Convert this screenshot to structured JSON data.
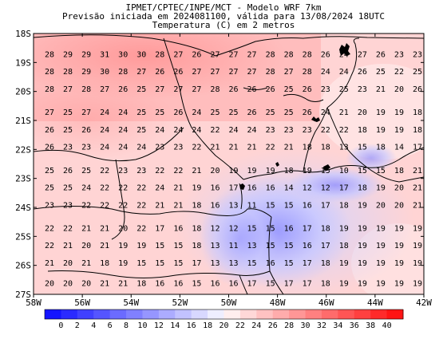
{
  "header": {
    "line1": "IPMET/CPTEC/INPE/MCT - Modelo WRF 7km",
    "line2": "Previsão iniciada em 2024081100, válida para 13/08/2024 18UTC",
    "line3": "Temperatura (C) em 2 metros"
  },
  "map": {
    "lon_ticks": [
      "58W",
      "56W",
      "54W",
      "52W",
      "50W",
      "48W",
      "46W",
      "44W",
      "42W"
    ],
    "lat_ticks": [
      "18S",
      "19S",
      "20S",
      "21S",
      "22S",
      "23S",
      "24S",
      "25S",
      "26S",
      "27S"
    ],
    "lon_range": [
      -58,
      -42
    ],
    "lat_range": [
      -27,
      -18
    ],
    "grid_rows": [
      {
        "lat": -18.7,
        "values": [
          "28",
          "29",
          "29",
          "31",
          "30",
          "30",
          "28",
          "27",
          "26",
          "27",
          "27",
          "27",
          "28",
          "28",
          "28",
          "26",
          "24",
          "27",
          "26",
          "23",
          "23"
        ]
      },
      {
        "lat": -19.3,
        "values": [
          "28",
          "28",
          "29",
          "30",
          "28",
          "27",
          "26",
          "26",
          "27",
          "27",
          "27",
          "27",
          "28",
          "27",
          "28",
          "24",
          "24",
          "26",
          "25",
          "22",
          "25"
        ]
      },
      {
        "lat": -19.9,
        "values": [
          "28",
          "27",
          "28",
          "27",
          "26",
          "25",
          "27",
          "27",
          "27",
          "28",
          "26",
          "26",
          "26",
          "25",
          "26",
          "23",
          "25",
          "23",
          "21",
          "20",
          "26"
        ]
      },
      {
        "lat": -20.7,
        "values": [
          "27",
          "25",
          "27",
          "24",
          "24",
          "25",
          "25",
          "26",
          "24",
          "25",
          "25",
          "26",
          "25",
          "25",
          "26",
          "24",
          "21",
          "20",
          "19",
          "19",
          "18"
        ]
      },
      {
        "lat": -21.3,
        "values": [
          "26",
          "25",
          "26",
          "24",
          "24",
          "25",
          "24",
          "24",
          "24",
          "22",
          "24",
          "24",
          "23",
          "23",
          "23",
          "22",
          "22",
          "18",
          "19",
          "19",
          "18"
        ]
      },
      {
        "lat": -21.9,
        "values": [
          "26",
          "23",
          "23",
          "24",
          "24",
          "24",
          "23",
          "23",
          "22",
          "21",
          "21",
          "21",
          "22",
          "21",
          "18",
          "18",
          "13",
          "15",
          "18",
          "14",
          "17"
        ]
      },
      {
        "lat": -22.7,
        "values": [
          "25",
          "26",
          "25",
          "22",
          "23",
          "23",
          "22",
          "22",
          "21",
          "20",
          "19",
          "19",
          "19",
          "18",
          "19",
          "15",
          "10",
          "15",
          "15",
          "18",
          "21"
        ]
      },
      {
        "lat": -23.3,
        "values": [
          "25",
          "25",
          "24",
          "22",
          "22",
          "22",
          "24",
          "21",
          "19",
          "16",
          "17",
          "16",
          "16",
          "14",
          "12",
          "12",
          "17",
          "18",
          "19",
          "20",
          "21"
        ]
      },
      {
        "lat": -23.9,
        "values": [
          "23",
          "23",
          "22",
          "22",
          "22",
          "22",
          "21",
          "21",
          "18",
          "16",
          "13",
          "11",
          "15",
          "15",
          "16",
          "17",
          "18",
          "19",
          "20",
          "20",
          "21"
        ]
      },
      {
        "lat": -24.7,
        "values": [
          "22",
          "22",
          "21",
          "21",
          "20",
          "22",
          "17",
          "16",
          "18",
          "12",
          "12",
          "15",
          "15",
          "16",
          "17",
          "18",
          "19",
          "19",
          "19",
          "19",
          "19"
        ]
      },
      {
        "lat": -25.3,
        "values": [
          "22",
          "21",
          "20",
          "21",
          "19",
          "19",
          "15",
          "15",
          "18",
          "13",
          "11",
          "13",
          "15",
          "15",
          "16",
          "17",
          "18",
          "19",
          "19",
          "19",
          "19"
        ]
      },
      {
        "lat": -25.9,
        "values": [
          "21",
          "20",
          "21",
          "18",
          "19",
          "15",
          "15",
          "15",
          "17",
          "13",
          "13",
          "15",
          "16",
          "15",
          "17",
          "18",
          "19",
          "19",
          "19",
          "19",
          "19"
        ]
      },
      {
        "lat": -26.6,
        "values": [
          "20",
          "20",
          "20",
          "21",
          "21",
          "18",
          "16",
          "16",
          "15",
          "16",
          "16",
          "17",
          "15",
          "17",
          "17",
          "18",
          "19",
          "19",
          "19",
          "19",
          "19"
        ]
      }
    ]
  },
  "colorbar": {
    "labels": [
      "0",
      "2",
      "4",
      "6",
      "8",
      "10",
      "12",
      "14",
      "16",
      "18",
      "20",
      "22",
      "24",
      "26",
      "28",
      "30",
      "32",
      "34",
      "36",
      "38",
      "40"
    ],
    "colors": [
      "#1414ff",
      "#2a2aff",
      "#4040ff",
      "#5555ff",
      "#6b6bff",
      "#8080ff",
      "#9696ff",
      "#acacff",
      "#c2c2ff",
      "#d8d8ff",
      "#eeeeff",
      "#ffeeee",
      "#ffd8d8",
      "#ffc2c2",
      "#ffacac",
      "#ff9696",
      "#ff8080",
      "#ff6b6b",
      "#ff5555",
      "#ff4040",
      "#ff2a2a",
      "#ff1414"
    ]
  }
}
